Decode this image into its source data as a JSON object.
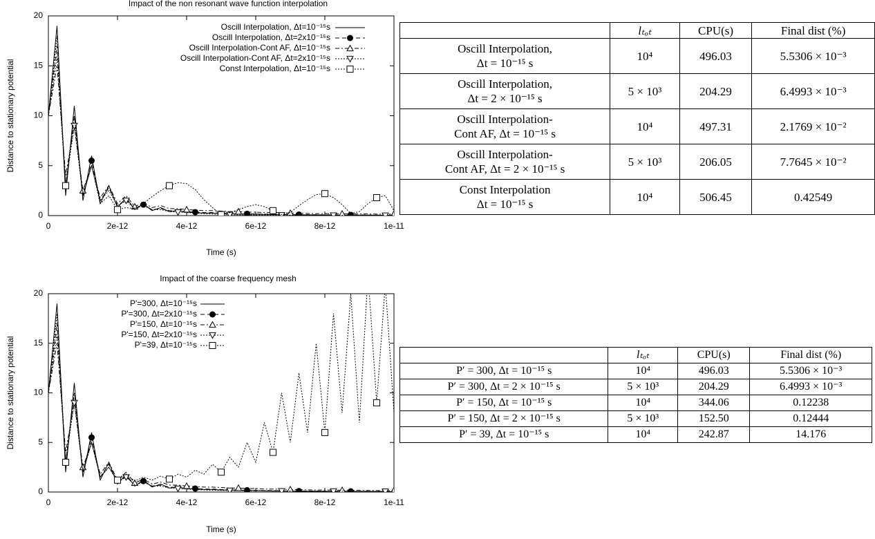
{
  "chart_data": [
    {
      "type": "line",
      "title": "Impact of the non resonant wave function interpolation",
      "xlabel": "Time (s)",
      "ylabel": "Distance to stationary potential",
      "x": [
        0,
        2.5e-13,
        5e-13,
        7.5e-13,
        1e-12,
        1.25e-12,
        1.5e-12,
        1.75e-12,
        2e-12,
        2.25e-12,
        2.5e-12,
        2.75e-12,
        3e-12,
        3.25e-12,
        3.5e-12,
        3.75e-12,
        4e-12,
        4.25e-12,
        4.5e-12,
        4.75e-12,
        5e-12,
        5.25e-12,
        5.5e-12,
        5.75e-12,
        6e-12,
        6.25e-12,
        6.5e-12,
        6.75e-12,
        7e-12,
        7.25e-12,
        7.5e-12,
        7.75e-12,
        8e-12,
        8.25e-12,
        8.5e-12,
        8.75e-12,
        9e-12,
        9.25e-12,
        9.5e-12,
        9.75e-12,
        1e-11
      ],
      "xlim": [
        0,
        1e-11
      ],
      "xticks": [
        0,
        2e-12,
        4e-12,
        6e-12,
        8e-12,
        1e-11
      ],
      "ylim": [
        0,
        20
      ],
      "yticks": [
        0,
        5,
        10,
        15,
        20
      ],
      "legend": "top-right",
      "series": [
        {
          "name": "Oscill Interpolation, Δt=10⁻¹⁵s",
          "color": "#000000",
          "dash": "solid",
          "marker": "none",
          "values": [
            10,
            19,
            2,
            11,
            1.5,
            6,
            1.2,
            3,
            0.8,
            1.8,
            0.6,
            1.2,
            0.5,
            0.8,
            0.4,
            0.5,
            0.35,
            0.3,
            0.25,
            0.25,
            0.2,
            0.2,
            0.18,
            0.15,
            0.15,
            0.12,
            0.1,
            0.1,
            0.1,
            0.08,
            0.08,
            0.07,
            0.06,
            0.06,
            0.05,
            0.05,
            0.05,
            0.04,
            0.04,
            0.04,
            0.04
          ]
        },
        {
          "name": "Oscill Interpolation, Δt=2x10⁻¹⁵s",
          "color": "#000000",
          "dash": "dashed",
          "marker": "circle",
          "values": [
            10,
            17,
            3,
            10,
            2,
            5.5,
            1.5,
            2.8,
            1,
            1.6,
            0.7,
            1.1,
            0.6,
            0.7,
            0.5,
            0.45,
            0.4,
            0.35,
            0.3,
            0.3,
            0.25,
            0.22,
            0.2,
            0.18,
            0.16,
            0.15,
            0.14,
            0.12,
            0.11,
            0.1,
            0.1,
            0.09,
            0.08,
            0.08,
            0.07,
            0.07,
            0.06,
            0.06,
            0.05,
            0.05,
            0.05
          ]
        },
        {
          "name": "Oscill Interpolation-Cont AF, Δt=10⁻¹⁵s",
          "color": "#000000",
          "dash": "dashdot",
          "marker": "triangle",
          "values": [
            10,
            15,
            4,
            9,
            2.5,
            5,
            1.8,
            3,
            1.2,
            2,
            0.9,
            1.3,
            0.8,
            1,
            0.7,
            0.7,
            0.6,
            0.55,
            0.5,
            0.5,
            0.45,
            0.4,
            0.4,
            0.35,
            0.35,
            0.3,
            0.3,
            0.28,
            0.25,
            0.25,
            0.22,
            0.2,
            0.2,
            0.2,
            0.18,
            0.18,
            0.17,
            0.16,
            0.15,
            0.15,
            0.15
          ]
        },
        {
          "name": "Oscill Interpolation-Cont AF, Δt=2x10⁻¹⁵s",
          "color": "#000000",
          "dash": "dotted",
          "marker": "triangle-down",
          "values": [
            10,
            16,
            3,
            9,
            2,
            5,
            1.5,
            2.5,
            1,
            1.5,
            0.7,
            1,
            0.6,
            0.6,
            0.4,
            0.35,
            0.3,
            0.25,
            0.2,
            0.15,
            0.1,
            0.1,
            0.08,
            0.08,
            0.06,
            0.06,
            0.05,
            0.05,
            0.05,
            0.04,
            0.04,
            0.04,
            0.03,
            0.03,
            0.03,
            0.03,
            0.02,
            0.02,
            0.02,
            0.02,
            0.02
          ]
        },
        {
          "name": "Const Interpolation, Δt=10⁻¹⁵s",
          "color": "#000000",
          "dash": "dotted",
          "marker": "square",
          "values": [
            10,
            18,
            3,
            10,
            2,
            5,
            1.2,
            2,
            0.6,
            0.8,
            0.7,
            1.2,
            1.9,
            2.5,
            3.0,
            3.3,
            3.2,
            2.6,
            1.6,
            0.8,
            0.1,
            0.3,
            0.6,
            0.9,
            1.1,
            0.9,
            0.5,
            0.1,
            0.3,
            1.0,
            1.6,
            2.1,
            2.2,
            1.8,
            1.1,
            0.2,
            0.4,
            1.2,
            1.8,
            2.0,
            0.5
          ]
        }
      ]
    },
    {
      "type": "line",
      "title": "Impact of the coarse frequency mesh",
      "xlabel": "Time (s)",
      "ylabel": "Distance to stationary potential",
      "x": [
        0,
        2.5e-13,
        5e-13,
        7.5e-13,
        1e-12,
        1.25e-12,
        1.5e-12,
        1.75e-12,
        2e-12,
        2.25e-12,
        2.5e-12,
        2.75e-12,
        3e-12,
        3.25e-12,
        3.5e-12,
        3.75e-12,
        4e-12,
        4.25e-12,
        4.5e-12,
        4.75e-12,
        5e-12,
        5.25e-12,
        5.5e-12,
        5.75e-12,
        6e-12,
        6.25e-12,
        6.5e-12,
        6.75e-12,
        7e-12,
        7.25e-12,
        7.5e-12,
        7.75e-12,
        8e-12,
        8.25e-12,
        8.5e-12,
        8.75e-12,
        9e-12,
        9.25e-12,
        9.5e-12,
        9.75e-12,
        1e-11
      ],
      "xlim": [
        0,
        1e-11
      ],
      "xticks": [
        0,
        2e-12,
        4e-12,
        6e-12,
        8e-12,
        1e-11
      ],
      "ylim": [
        0,
        20
      ],
      "yticks": [
        0,
        5,
        10,
        15,
        20
      ],
      "legend": "top-left",
      "series": [
        {
          "name": "P'=300, Δt=10⁻¹⁵s",
          "color": "#000000",
          "dash": "solid",
          "marker": "none",
          "values": [
            10,
            19,
            2,
            11,
            1.5,
            6,
            1.2,
            3,
            0.8,
            1.8,
            0.6,
            1.2,
            0.5,
            0.8,
            0.4,
            0.5,
            0.35,
            0.3,
            0.25,
            0.25,
            0.2,
            0.2,
            0.18,
            0.15,
            0.15,
            0.12,
            0.1,
            0.1,
            0.1,
            0.08,
            0.08,
            0.07,
            0.06,
            0.06,
            0.05,
            0.05,
            0.05,
            0.04,
            0.04,
            0.04,
            0.04
          ]
        },
        {
          "name": "P'=300, Δt=2x10⁻¹⁵s",
          "color": "#000000",
          "dash": "dashed",
          "marker": "circle",
          "values": [
            10,
            17,
            3,
            10,
            2,
            5.5,
            1.5,
            2.8,
            1,
            1.6,
            0.7,
            1.1,
            0.6,
            0.7,
            0.5,
            0.45,
            0.4,
            0.35,
            0.3,
            0.3,
            0.25,
            0.22,
            0.2,
            0.18,
            0.16,
            0.15,
            0.14,
            0.12,
            0.11,
            0.1,
            0.1,
            0.09,
            0.08,
            0.08,
            0.07,
            0.07,
            0.06,
            0.06,
            0.05,
            0.05,
            0.05
          ]
        },
        {
          "name": "P'=150, Δt=10⁻¹⁵s",
          "color": "#000000",
          "dash": "dashdot",
          "marker": "triangle",
          "values": [
            10,
            15,
            4,
            9,
            2.5,
            5,
            1.8,
            3,
            1.2,
            2,
            0.9,
            1.3,
            0.8,
            1,
            0.7,
            0.7,
            0.6,
            0.55,
            0.5,
            0.5,
            0.45,
            0.4,
            0.4,
            0.35,
            0.35,
            0.3,
            0.3,
            0.28,
            0.25,
            0.25,
            0.22,
            0.2,
            0.2,
            0.2,
            0.18,
            0.18,
            0.17,
            0.16,
            0.15,
            0.15,
            0.15
          ]
        },
        {
          "name": "P'=150, Δt=2x10⁻¹⁵s",
          "color": "#000000",
          "dash": "dotted",
          "marker": "triangle-down",
          "values": [
            10,
            16,
            3,
            9,
            2,
            5,
            1.5,
            2.5,
            1,
            1.5,
            0.7,
            1,
            0.6,
            0.6,
            0.4,
            0.35,
            0.3,
            0.25,
            0.2,
            0.18,
            0.16,
            0.15,
            0.14,
            0.13,
            0.12,
            0.12,
            0.11,
            0.1,
            0.1,
            0.1,
            0.09,
            0.09,
            0.08,
            0.08,
            0.08,
            0.07,
            0.07,
            0.07,
            0.06,
            0.06,
            0.06
          ]
        },
        {
          "name": "P'=39, Δt=10⁻¹⁵s",
          "color": "#000000",
          "dash": "dotted",
          "marker": "square",
          "values": [
            10,
            18,
            3,
            10,
            2,
            5,
            1.5,
            2.5,
            1.2,
            1.8,
            1.1,
            1.5,
            1.2,
            1.6,
            1.3,
            1.8,
            1.5,
            2.2,
            1.8,
            2.8,
            2.0,
            3.5,
            2.5,
            5,
            3,
            7,
            4,
            10,
            5,
            12,
            6,
            15,
            6,
            18,
            8,
            20,
            7,
            22,
            9,
            21,
            8
          ]
        }
      ]
    }
  ],
  "tables": [
    {
      "header": [
        "lₜₒₜ",
        "CPU(s)",
        "Final dist (%)"
      ],
      "rows": [
        [
          "Oscill Interpolation,",
          "Δt = 10⁻¹⁵ s",
          "10⁴",
          "496.03",
          "5.5306 × 10⁻³"
        ],
        [
          "Oscill Interpolation,",
          "Δt = 2 × 10⁻¹⁵ s",
          "5 × 10³",
          "204.29",
          "6.4993 × 10⁻³"
        ],
        [
          "Oscill Interpolation-",
          "Cont AF, Δt = 10⁻¹⁵ s",
          "10⁴",
          "497.31",
          "2.1769 × 10⁻²"
        ],
        [
          "Oscill Interpolation-",
          "Cont AF, Δt = 2 × 10⁻¹⁵ s",
          "5 × 10³",
          "206.05",
          "7.7645 × 10⁻²"
        ],
        [
          "Const Interpolation",
          "Δt = 10⁻¹⁵ s",
          "10⁴",
          "506.45",
          "0.42549"
        ]
      ]
    },
    {
      "header": [
        "lₜₒₜ",
        "CPU(s)",
        "Final dist (%)"
      ],
      "rows": [
        [
          "P′ = 300, Δt = 10⁻¹⁵ s",
          "10⁴",
          "496.03",
          "5.5306 × 10⁻³"
        ],
        [
          "P′ = 300, Δt = 2 × 10⁻¹⁵ s",
          "5 × 10³",
          "204.29",
          "6.4993 × 10⁻³"
        ],
        [
          "P′ = 150, Δt = 10⁻¹⁵ s",
          "10⁴",
          "344.06",
          "0.12238"
        ],
        [
          "P′ = 150, Δt = 2 × 10⁻¹⁵ s",
          "5 × 10³",
          "152.50",
          "0.12444"
        ],
        [
          "P′ = 39, Δt = 10⁻¹⁵ s",
          "10⁴",
          "242.87",
          "14.176"
        ]
      ]
    }
  ]
}
